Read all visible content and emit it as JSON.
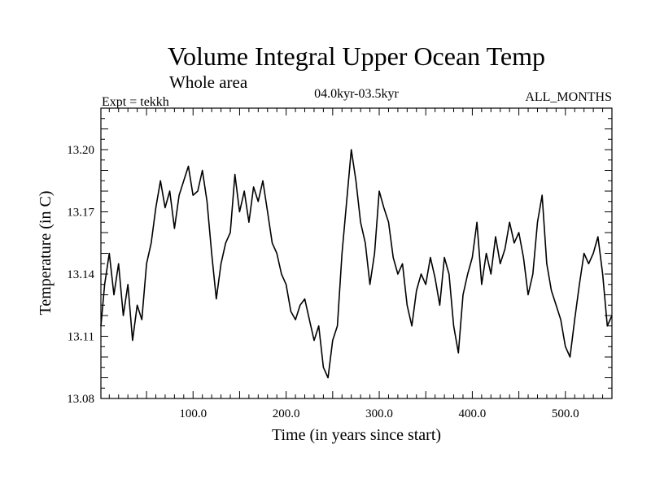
{
  "chart_data": {
    "type": "line",
    "title": "Volume Integral Upper Ocean Temp",
    "subtitle": "Whole area",
    "expt": "Expt = tekkh",
    "period": "04.0kyr-03.5kyr",
    "months": "ALL_MONTHS",
    "xlabel": "Time (in years since start)",
    "ylabel": "Temperature (in C)",
    "xlim": [
      1,
      550
    ],
    "ylim": [
      13.08,
      13.22
    ],
    "x_ticks": [
      {
        "value": 100,
        "label": "100.0"
      },
      {
        "value": 200,
        "label": "200.0"
      },
      {
        "value": 300,
        "label": "300.0"
      },
      {
        "value": 400,
        "label": "400.0"
      },
      {
        "value": 500,
        "label": "500.0"
      }
    ],
    "y_ticks": [
      {
        "value": 13.08,
        "label": "13.08"
      },
      {
        "value": 13.11,
        "label": "13.11"
      },
      {
        "value": 13.14,
        "label": "13.14"
      },
      {
        "value": 13.17,
        "label": "13.17"
      },
      {
        "value": 13.2,
        "label": "13.20"
      }
    ],
    "series": [
      {
        "name": "Temperature",
        "color": "#000000",
        "x": [
          1,
          5,
          10,
          15,
          20,
          25,
          30,
          35,
          40,
          45,
          50,
          55,
          60,
          65,
          70,
          75,
          80,
          85,
          90,
          95,
          100,
          105,
          110,
          115,
          120,
          125,
          130,
          135,
          140,
          145,
          150,
          155,
          160,
          165,
          170,
          175,
          180,
          185,
          190,
          195,
          200,
          205,
          210,
          215,
          220,
          225,
          230,
          235,
          240,
          245,
          250,
          255,
          260,
          265,
          270,
          275,
          280,
          285,
          290,
          295,
          300,
          305,
          310,
          315,
          320,
          325,
          330,
          335,
          340,
          345,
          350,
          355,
          360,
          365,
          370,
          375,
          380,
          385,
          390,
          395,
          400,
          405,
          410,
          415,
          420,
          425,
          430,
          435,
          440,
          445,
          450,
          455,
          460,
          465,
          470,
          475,
          480,
          485,
          490,
          495,
          500,
          505,
          510,
          515,
          520,
          525,
          530,
          535,
          540,
          545,
          550
        ],
        "values": [
          13.115,
          13.135,
          13.15,
          13.13,
          13.145,
          13.12,
          13.135,
          13.108,
          13.125,
          13.118,
          13.145,
          13.155,
          13.172,
          13.185,
          13.172,
          13.18,
          13.162,
          13.178,
          13.185,
          13.192,
          13.178,
          13.18,
          13.19,
          13.175,
          13.15,
          13.128,
          13.145,
          13.155,
          13.16,
          13.188,
          13.17,
          13.18,
          13.165,
          13.182,
          13.175,
          13.185,
          13.17,
          13.155,
          13.15,
          13.14,
          13.135,
          13.122,
          13.118,
          13.125,
          13.128,
          13.118,
          13.108,
          13.115,
          13.095,
          13.09,
          13.108,
          13.115,
          13.15,
          13.175,
          13.2,
          13.185,
          13.165,
          13.155,
          13.135,
          13.15,
          13.18,
          13.172,
          13.165,
          13.148,
          13.14,
          13.145,
          13.125,
          13.115,
          13.132,
          13.14,
          13.135,
          13.148,
          13.138,
          13.125,
          13.148,
          13.14,
          13.115,
          13.102,
          13.13,
          13.14,
          13.148,
          13.165,
          13.135,
          13.15,
          13.14,
          13.158,
          13.145,
          13.152,
          13.165,
          13.155,
          13.16,
          13.148,
          13.13,
          13.14,
          13.165,
          13.178,
          13.145,
          13.132,
          13.125,
          13.118,
          13.105,
          13.1,
          13.118,
          13.135,
          13.15,
          13.145,
          13.15,
          13.158,
          13.14,
          13.115,
          13.12
        ]
      }
    ]
  }
}
